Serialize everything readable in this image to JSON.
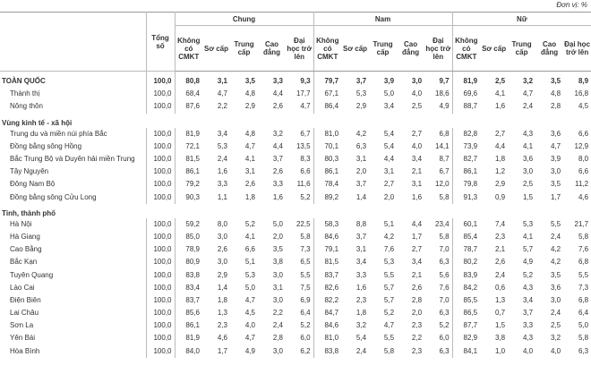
{
  "header": {
    "unit": "Đơn vị: %"
  },
  "table": {
    "label_header": "",
    "total_header": "Tổng số",
    "groups": [
      "Chung",
      "Nam",
      "Nữ"
    ],
    "subcolumns": [
      "Không có CMKT",
      "Sơ cấp",
      "Trung cấp",
      "Cao đẳng",
      "Đại học trở lên"
    ],
    "rows": [
      {
        "label": "TOÀN QUỐC",
        "total": "100,0",
        "values": [
          "80,8",
          "3,1",
          "3,5",
          "3,3",
          "9,3",
          "79,7",
          "3,7",
          "3,9",
          "3,0",
          "9,7",
          "81,9",
          "2,5",
          "3,2",
          "3,5",
          "8,9"
        ]
      },
      {
        "label": "Thành thị",
        "total": "100,0",
        "values": [
          "68,4",
          "4,7",
          "4,8",
          "4,4",
          "17,7",
          "67,1",
          "5,3",
          "5,0",
          "4,0",
          "18,6",
          "69,6",
          "4,1",
          "4,7",
          "4,8",
          "16,8"
        ]
      },
      {
        "label": "Nông thôn",
        "total": "100,0",
        "values": [
          "87,6",
          "2,2",
          "2,9",
          "2,6",
          "4,7",
          "86,4",
          "2,9",
          "3,4",
          "2,5",
          "4,9",
          "88,7",
          "1,6",
          "2,4",
          "2,8",
          "4,5"
        ]
      },
      {
        "label": "Vùng kinh tế - xã hội"
      },
      {
        "label": "Trung du và miền núi phía Bắc",
        "total": "100,0",
        "values": [
          "81,9",
          "3,4",
          "4,8",
          "3,2",
          "6,7",
          "81,0",
          "4,2",
          "5,4",
          "2,7",
          "6,8",
          "82,8",
          "2,7",
          "4,3",
          "3,6",
          "6,6"
        ]
      },
      {
        "label": "Đồng bằng sông Hồng",
        "total": "100,0",
        "values": [
          "72,1",
          "5,3",
          "4,7",
          "4,4",
          "13,5",
          "70,1",
          "6,3",
          "5,4",
          "4,0",
          "14,1",
          "73,9",
          "4,4",
          "4,1",
          "4,7",
          "12,9"
        ]
      },
      {
        "label": "Bắc Trung Bộ và Duyên hải miền Trung",
        "total": "100,0",
        "values": [
          "81,5",
          "2,4",
          "4,1",
          "3,7",
          "8,3",
          "80,3",
          "3,1",
          "4,4",
          "3,4",
          "8,7",
          "82,7",
          "1,8",
          "3,6",
          "3,9",
          "8,0"
        ]
      },
      {
        "label": "Tây Nguyên",
        "total": "100,0",
        "values": [
          "86,1",
          "1,6",
          "3,1",
          "2,6",
          "6,6",
          "86,1",
          "2,0",
          "3,1",
          "2,1",
          "6,7",
          "86,1",
          "1,2",
          "3,0",
          "3,0",
          "6,6"
        ]
      },
      {
        "label": "Đông Nam Bộ",
        "total": "100,0",
        "values": [
          "79,2",
          "3,3",
          "2,6",
          "3,3",
          "11,6",
          "78,4",
          "3,7",
          "2,7",
          "3,1",
          "12,0",
          "79,8",
          "2,9",
          "2,5",
          "3,5",
          "11,2"
        ]
      },
      {
        "label": "Đồng bằng sông Cửu Long",
        "total": "100,0",
        "values": [
          "90,3",
          "1,1",
          "1,8",
          "1,6",
          "5,2",
          "89,2",
          "1,4",
          "2,0",
          "1,6",
          "5,8",
          "91,3",
          "0,9",
          "1,5",
          "1,7",
          "4,6"
        ]
      },
      {
        "label": "Tỉnh, thành phố"
      },
      {
        "label": "Hà Nội",
        "total": "100,0",
        "values": [
          "59,2",
          "8,0",
          "5,2",
          "5,0",
          "22,5",
          "58,3",
          "8,8",
          "5,1",
          "4,4",
          "23,4",
          "60,1",
          "7,4",
          "5,3",
          "5,5",
          "21,7"
        ]
      },
      {
        "label": "Hà Giang",
        "total": "100,0",
        "values": [
          "85,0",
          "3,0",
          "4,1",
          "2,0",
          "5,8",
          "84,6",
          "3,7",
          "4,2",
          "1,7",
          "5,8",
          "85,4",
          "2,3",
          "4,1",
          "2,4",
          "5,8"
        ]
      },
      {
        "label": "Cao Bằng",
        "total": "100,0",
        "values": [
          "78,9",
          "2,6",
          "6,6",
          "3,5",
          "7,3",
          "79,1",
          "3,1",
          "7,6",
          "2,7",
          "7,0",
          "78,7",
          "2,1",
          "5,7",
          "4,2",
          "7,6"
        ]
      },
      {
        "label": "Bắc Kạn",
        "total": "100,0",
        "values": [
          "80,9",
          "3,0",
          "5,1",
          "3,8",
          "6,5",
          "81,5",
          "3,4",
          "5,3",
          "3,4",
          "6,3",
          "80,2",
          "2,6",
          "4,9",
          "4,2",
          "6,8"
        ]
      },
      {
        "label": "Tuyên Quang",
        "total": "100,0",
        "values": [
          "83,8",
          "2,9",
          "5,3",
          "3,0",
          "5,5",
          "83,7",
          "3,3",
          "5,5",
          "2,1",
          "5,6",
          "83,9",
          "2,4",
          "5,2",
          "3,5",
          "5,5"
        ]
      },
      {
        "label": "Lào Cai",
        "total": "100,0",
        "values": [
          "83,4",
          "1,4",
          "5,0",
          "3,1",
          "7,5",
          "82,6",
          "1,6",
          "5,7",
          "2,6",
          "7,6",
          "84,2",
          "0,6",
          "4,3",
          "3,6",
          "7,3"
        ]
      },
      {
        "label": "Điện Biên",
        "total": "100,0",
        "values": [
          "83,7",
          "1,8",
          "4,7",
          "3,0",
          "6,9",
          "82,2",
          "2,3",
          "5,7",
          "2,8",
          "7,0",
          "85,5",
          "1,3",
          "3,4",
          "3,0",
          "6,8"
        ]
      },
      {
        "label": "Lai Châu",
        "total": "100,0",
        "values": [
          "85,6",
          "1,3",
          "4,5",
          "2,2",
          "6,4",
          "84,7",
          "1,8",
          "5,2",
          "2,0",
          "6,3",
          "86,5",
          "0,7",
          "3,7",
          "2,4",
          "6,4"
        ]
      },
      {
        "label": "Sơn La",
        "total": "100,0",
        "values": [
          "86,1",
          "2,3",
          "4,0",
          "2,4",
          "5,2",
          "84,6",
          "3,2",
          "4,7",
          "2,3",
          "5,2",
          "87,7",
          "1,5",
          "3,3",
          "2,5",
          "5,0"
        ]
      },
      {
        "label": "Yên Bái",
        "total": "100,0",
        "values": [
          "81,9",
          "4,6",
          "4,7",
          "2,8",
          "6,0",
          "81,0",
          "5,4",
          "5,5",
          "2,2",
          "6,0",
          "82,9",
          "3,8",
          "4,3",
          "3,2",
          "5,8"
        ]
      },
      {
        "label": "Hòa Bình",
        "total": "100,0",
        "values": [
          "84,0",
          "1,7",
          "4,9",
          "3,0",
          "6,2",
          "83,8",
          "2,4",
          "5,8",
          "2,3",
          "6,3",
          "84,1",
          "1,0",
          "4,0",
          "4,0",
          "6,3"
        ]
      }
    ]
  }
}
